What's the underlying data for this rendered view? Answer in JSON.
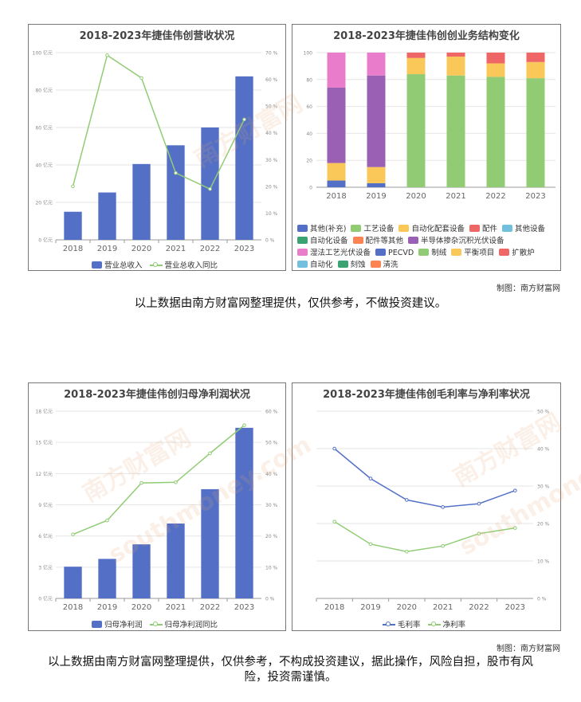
{
  "colors": {
    "bar": "#5470c6",
    "line_green": "#91cc75",
    "line_blue": "#5470c6"
  },
  "watermark_text": "南方财富网",
  "watermark_url": "southmoney.com",
  "credit_top": "制图：南方财富网",
  "credit_bottom": "制图：南方财富网",
  "disclaimer_top": "以上数据由南方财富网整理提供，仅供参考，不做投资建议。",
  "disclaimer_bottom": "以上数据由南方财富网整理提供，仅供参考，不构成投资建议，据此操作，风险自担，股市有风险，投资需谨慎。",
  "chart_data": [
    {
      "type": "bar",
      "title": "2018-2023年捷佳伟创营收状况",
      "categories": [
        "2018",
        "2019",
        "2020",
        "2021",
        "2022",
        "2023"
      ],
      "series": [
        {
          "name": "营业总收入",
          "type": "bar",
          "axis": "left",
          "values": [
            15,
            25.3,
            40.5,
            50.5,
            60,
            87.3
          ]
        },
        {
          "name": "营业总收入同比",
          "type": "line",
          "axis": "right",
          "values": [
            20,
            69,
            60.5,
            25,
            19,
            45
          ]
        }
      ],
      "left_axis": {
        "ticks": [
          "0 亿元",
          "20 亿元",
          "40 亿元",
          "60 亿元",
          "80 亿元",
          "100 亿元"
        ],
        "ylim": [
          0,
          100
        ]
      },
      "right_axis": {
        "ticks": [
          "0 %",
          "10 %",
          "20 %",
          "30 %",
          "40 %",
          "50 %",
          "60 %",
          "70 %"
        ],
        "ylim": [
          0,
          70
        ]
      }
    },
    {
      "type": "bar",
      "stacked": true,
      "title": "2018-2023年捷佳伟创创业务结构变化",
      "categories": [
        "2018",
        "2019",
        "2020",
        "2021",
        "2022",
        "2023"
      ],
      "y_ticks": [
        "0",
        "20",
        "40",
        "60",
        "80",
        "100"
      ],
      "ylim": [
        0,
        100
      ],
      "series": [
        {
          "name": "其他(补充)",
          "color": "#5470c6",
          "values": [
            5,
            3,
            0,
            0,
            0,
            0
          ]
        },
        {
          "name": "工艺设备",
          "color": "#91cc75",
          "values": [
            0,
            0,
            84,
            83,
            82,
            81
          ]
        },
        {
          "name": "自动化配套设备",
          "color": "#fac858",
          "values": [
            13,
            12,
            12,
            14,
            10,
            12
          ]
        },
        {
          "name": "配件",
          "color": "#ee6666",
          "values": [
            0,
            0,
            4,
            3,
            8,
            7
          ]
        },
        {
          "name": "其他设备",
          "color": "#73c0de",
          "values": [
            0,
            0,
            0,
            0,
            0,
            0
          ]
        },
        {
          "name": "自动化设备",
          "color": "#3ba272",
          "values": [
            0,
            0,
            0,
            0,
            0,
            0
          ]
        },
        {
          "name": "配件等其他",
          "color": "#fc8452",
          "values": [
            0,
            0,
            0,
            0,
            0,
            0
          ]
        },
        {
          "name": "半导体掺杂沉积光伏设备",
          "color": "#9a60b4",
          "values": [
            56,
            68,
            0,
            0,
            0,
            0
          ]
        },
        {
          "name": "湿法工艺光伏设备",
          "color": "#ea7ccc",
          "values": [
            26,
            17,
            0,
            0,
            0,
            0
          ]
        },
        {
          "name": "PECVD",
          "color": "#5470c6",
          "values": [
            0,
            0,
            0,
            0,
            0,
            0
          ]
        },
        {
          "name": "制绒",
          "color": "#91cc75",
          "values": [
            0,
            0,
            0,
            0,
            0,
            0
          ]
        },
        {
          "name": "平衡项目",
          "color": "#fac858",
          "values": [
            0,
            0,
            0,
            0,
            0,
            0
          ]
        },
        {
          "name": "扩散炉",
          "color": "#ee6666",
          "values": [
            0,
            0,
            0,
            0,
            0,
            0
          ]
        },
        {
          "name": "自动化",
          "color": "#73c0de",
          "values": [
            0,
            0,
            0,
            0,
            0,
            0
          ]
        },
        {
          "name": "刻蚀",
          "color": "#3ba272",
          "values": [
            0,
            0,
            0,
            0,
            0,
            0
          ]
        },
        {
          "name": "清洗",
          "color": "#fc8452",
          "values": [
            0,
            0,
            0,
            0,
            0,
            0
          ]
        }
      ],
      "legend_rows": [
        [
          "其他(补充)",
          "工艺设备",
          "自动化配套设备",
          "配件",
          "其他设备"
        ],
        [
          "自动化设备",
          "配件等其他",
          "半导体掺杂沉积光伏设备"
        ],
        [
          "湿法工艺光伏设备",
          "PECVD",
          "制绒",
          "平衡项目",
          "扩散炉"
        ],
        [
          "自动化",
          "刻蚀",
          "清洗"
        ]
      ]
    },
    {
      "type": "bar",
      "title": "2018-2023年捷佳伟创归母净利润状况",
      "categories": [
        "2018",
        "2019",
        "2020",
        "2021",
        "2022",
        "2023"
      ],
      "series": [
        {
          "name": "归母净利润",
          "type": "bar",
          "axis": "left",
          "values": [
            3.05,
            3.8,
            5.2,
            7.2,
            10.5,
            16.4
          ]
        },
        {
          "name": "归母净利润同比",
          "type": "line",
          "axis": "right",
          "values": [
            20.5,
            25,
            37,
            37.2,
            46.5,
            55.5
          ]
        }
      ],
      "left_axis": {
        "ticks": [
          "0 亿元",
          "3 亿元",
          "6 亿元",
          "9 亿元",
          "12 亿元",
          "15 亿元",
          "18 亿元"
        ],
        "ylim": [
          0,
          18
        ]
      },
      "right_axis": {
        "ticks": [
          "0 %",
          "10 %",
          "20 %",
          "30 %",
          "40 %",
          "50 %",
          "60 %"
        ],
        "ylim": [
          0,
          60
        ]
      }
    },
    {
      "type": "line",
      "title": "2018-2023年捷佳伟创毛利率与净利率状况",
      "categories": [
        "2018",
        "2019",
        "2020",
        "2021",
        "2022",
        "2023"
      ],
      "series": [
        {
          "name": "毛利率",
          "color": "#5470c6",
          "values": [
            40,
            32,
            26.3,
            24.4,
            25.3,
            28.8
          ]
        },
        {
          "name": "净利率",
          "color": "#91cc75",
          "values": [
            20.5,
            14.5,
            12.5,
            14,
            17.3,
            18.8
          ]
        }
      ],
      "right_axis": {
        "ticks": [
          "0 %",
          "10 %",
          "20 %",
          "30 %",
          "40 %",
          "50 %"
        ],
        "ylim": [
          0,
          50
        ]
      }
    }
  ]
}
